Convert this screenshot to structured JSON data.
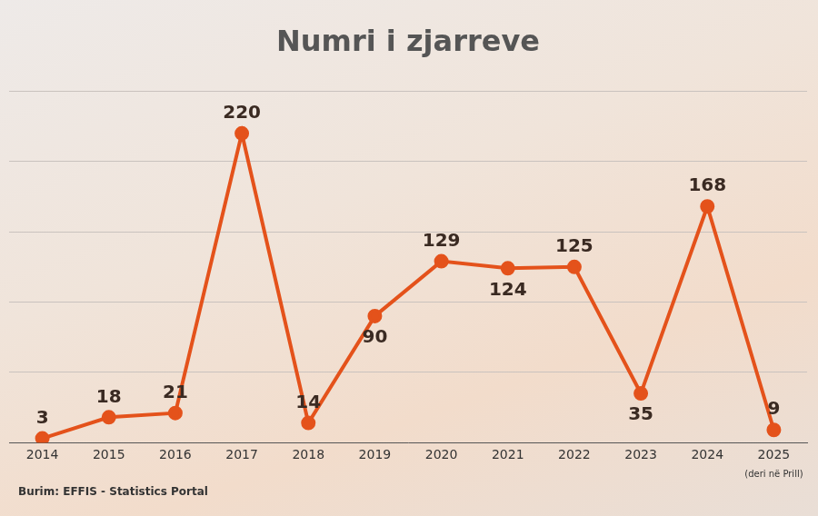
{
  "chart_data": {
    "type": "line",
    "title": "Numri i zjarreve",
    "categories": [
      "2014",
      "2015",
      "2016",
      "2017",
      "2018",
      "2019",
      "2020",
      "2021",
      "2022",
      "2023",
      "2024",
      "2025"
    ],
    "values": [
      3,
      18,
      21,
      220,
      14,
      90,
      129,
      124,
      125,
      35,
      168,
      9
    ],
    "color": "#e4521b",
    "marker": "circle",
    "ylim": [
      0,
      250
    ],
    "yticks": [
      0,
      50,
      100,
      150,
      200,
      250
    ],
    "grid": true,
    "data_labels": true,
    "tick_labels": "x",
    "annotations": [
      {
        "text": "(deri në Prill)",
        "category": "2025"
      }
    ],
    "source": "Burim: EFFIS - Statistics Portal"
  }
}
